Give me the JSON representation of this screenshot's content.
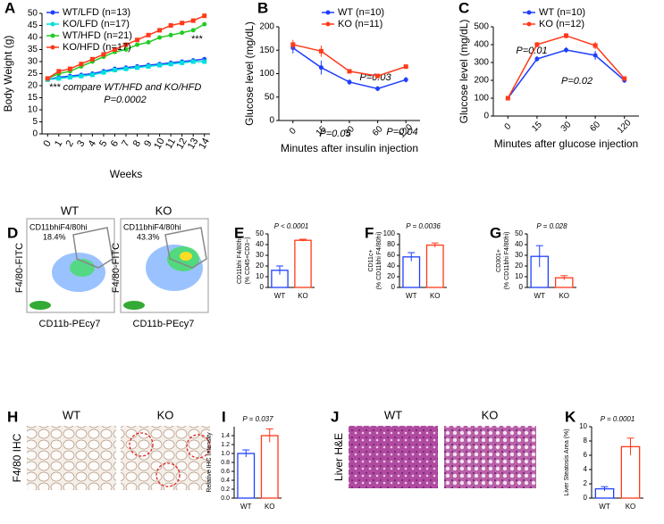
{
  "chart_data": [
    {
      "type": "line",
      "panel": "A",
      "xlabel": "Weeks",
      "ylabel": "Body Weight (g)",
      "x": [
        0,
        1,
        2,
        3,
        4,
        5,
        6,
        7,
        8,
        9,
        10,
        11,
        12,
        13,
        14
      ],
      "xlim": [
        -0.5,
        14.5
      ],
      "xticks": [
        0,
        1,
        2,
        3,
        4,
        5,
        6,
        7,
        8,
        9,
        10,
        11,
        12,
        13,
        14
      ],
      "ylim": [
        0,
        50
      ],
      "yticks": [
        0,
        5,
        10,
        15,
        20,
        25,
        30,
        35,
        40,
        45,
        50
      ],
      "series": [
        {
          "name": "WT/LFD (n=13)",
          "color": "#1f3fff",
          "values": [
            22.5,
            23.5,
            24,
            24.5,
            25,
            26,
            27,
            27.5,
            28,
            28.5,
            29,
            29.5,
            30,
            30.5,
            31
          ]
        },
        {
          "name": "KO/LFD (n=17)",
          "color": "#00dddd",
          "values": [
            22.5,
            23,
            23.5,
            24,
            24.5,
            25.5,
            26.5,
            27,
            27.5,
            28,
            28.5,
            29,
            29.5,
            30,
            30
          ]
        },
        {
          "name": "WT/HFD (n=21)",
          "color": "#22cc22",
          "values": [
            23,
            25,
            26,
            28,
            30,
            32,
            34,
            35,
            37,
            38,
            40,
            41,
            42,
            43,
            45.5
          ]
        },
        {
          "name": "KO/HFD (n=17)",
          "color": "#ff3a1a",
          "values": [
            23,
            26,
            27,
            29,
            31,
            33,
            35,
            37,
            39,
            41,
            43,
            45,
            46,
            47,
            49
          ]
        }
      ],
      "annotations": [
        {
          "text": "***",
          "color": "#ff33cc"
        },
        {
          "text": "*** compare WT/HFD and KO/HFD",
          "color": "#ff33cc"
        },
        {
          "text": "P=0.0002",
          "color": "#ff33cc"
        }
      ]
    },
    {
      "type": "line",
      "panel": "B",
      "xlabel": "Minutes after insulin injection",
      "ylabel": "Glucose level (mg/dL)",
      "categories": [
        "0",
        "15",
        "30",
        "60",
        "120"
      ],
      "ylim": [
        0,
        200
      ],
      "yticks": [
        0,
        50,
        100,
        150,
        200
      ],
      "series": [
        {
          "name": "WT (n=10)",
          "color": "#1f3fff",
          "values": [
            155,
            113,
            82,
            68,
            87
          ],
          "errors": [
            12,
            15,
            6,
            5,
            6
          ]
        },
        {
          "name": "KO (n=11)",
          "color": "#ff3a1a",
          "values": [
            162,
            148,
            105,
            95,
            115
          ],
          "errors": [
            10,
            12,
            4,
            4,
            4
          ]
        }
      ],
      "annotations": [
        {
          "text": "P=0.03",
          "color": "#000000"
        },
        {
          "text": "P=0.05",
          "color": "#000000"
        },
        {
          "text": "P=0.04",
          "color": "#000000"
        }
      ]
    },
    {
      "type": "line",
      "panel": "C",
      "xlabel": "Minutes after glucose injection",
      "ylabel": "Glucose level (mg/dL)",
      "categories": [
        "0",
        "15",
        "30",
        "60",
        "120"
      ],
      "ylim": [
        0,
        500
      ],
      "yticks": [
        0,
        100,
        200,
        300,
        400,
        500
      ],
      "series": [
        {
          "name": "WT (n=10)",
          "color": "#1f3fff",
          "values": [
            100,
            320,
            370,
            340,
            200
          ],
          "errors": [
            8,
            15,
            15,
            25,
            15
          ]
        },
        {
          "name": "KO (n=12)",
          "color": "#ff3a1a",
          "values": [
            100,
            400,
            450,
            395,
            210
          ],
          "errors": [
            8,
            15,
            15,
            20,
            10
          ]
        }
      ],
      "annotations": [
        {
          "text": "P=0.01",
          "color": "#000000"
        },
        {
          "text": "P=0.02",
          "color": "#000000"
        }
      ]
    },
    {
      "type": "bar",
      "panel": "E",
      "ylabel": [
        "CD11bhi F4/80hi",
        "(% CD45+CD3−)"
      ],
      "categories": [
        "WT",
        "KO"
      ],
      "values": [
        16,
        44
      ],
      "errors": [
        4,
        1
      ],
      "colors": [
        "#1f3fff",
        "#ff3a1a"
      ],
      "ylim": [
        0,
        50
      ],
      "yticks": [
        0,
        10,
        20,
        30,
        40,
        50
      ],
      "annotations": [
        {
          "text": "P < 0.0001",
          "color": "#000000"
        }
      ]
    },
    {
      "type": "bar",
      "panel": "F",
      "ylabel": [
        "CD11c+",
        "(% CD11bhi F4/80hi)"
      ],
      "categories": [
        "WT",
        "KO"
      ],
      "values": [
        57,
        79
      ],
      "errors": [
        8,
        4
      ],
      "colors": [
        "#1f3fff",
        "#ff3a1a"
      ],
      "ylim": [
        0,
        100
      ],
      "yticks": [
        0,
        20,
        40,
        60,
        80,
        100
      ],
      "annotations": [
        {
          "text": "P = 0.0036",
          "color": "#000000"
        }
      ]
    },
    {
      "type": "bar",
      "panel": "G",
      "ylabel": [
        "CD301+",
        "(% CD11bhi F4/80hi)"
      ],
      "categories": [
        "WT",
        "KO"
      ],
      "values": [
        29,
        9
      ],
      "errors": [
        10,
        2
      ],
      "colors": [
        "#1f3fff",
        "#ff3a1a"
      ],
      "ylim": [
        0,
        50
      ],
      "yticks": [
        0,
        10,
        20,
        30,
        40,
        50
      ],
      "annotations": [
        {
          "text": "P = 0.028",
          "color": "#000000"
        }
      ]
    },
    {
      "type": "bar",
      "panel": "I",
      "ylabel": [
        "Relative IHC Intensity"
      ],
      "categories": [
        "WT",
        "KO"
      ],
      "values": [
        1.0,
        1.4
      ],
      "errors": [
        0.08,
        0.15
      ],
      "colors": [
        "#1f3fff",
        "#ff3a1a"
      ],
      "ylim": [
        0,
        1.6
      ],
      "yticks": [
        {
          "value": 0,
          "label": "0.0"
        },
        {
          "value": 0.2,
          "label": "0.2"
        },
        {
          "value": 0.4,
          "label": "0.4"
        },
        {
          "value": 0.6,
          "label": "0.6"
        },
        {
          "value": 0.8,
          "label": "0.8"
        },
        {
          "value": 1,
          "label": "1.0"
        },
        {
          "value": 1.2,
          "label": "1.2"
        },
        {
          "value": 1.4,
          "label": "1.4"
        }
      ],
      "annotations": [
        {
          "text": "P = 0.037",
          "color": "#000000"
        }
      ]
    },
    {
      "type": "bar",
      "panel": "K",
      "ylabel": [
        "Liver Steatosis Area (%)"
      ],
      "categories": [
        "WT",
        "KO"
      ],
      "values": [
        1.3,
        7.2
      ],
      "errors": [
        0.3,
        1.2
      ],
      "colors": [
        "#1f3fff",
        "#ff3a1a"
      ],
      "ylim": [
        0,
        10
      ],
      "yticks": [
        0,
        2,
        4,
        6,
        8,
        10
      ],
      "annotations": [
        {
          "text": "P = 0.0001",
          "color": "#000000"
        }
      ]
    }
  ],
  "image_panels": {
    "flow": {
      "panel": "D",
      "columns": [
        "WT",
        "KO"
      ],
      "gates": [
        "CD11bhiF4/80hi",
        "CD11bhiF4/80hi"
      ],
      "percents": [
        "18.4%",
        "43.3%"
      ],
      "ylabel": "F4/80-FITC",
      "xlabel": "CD11b-PEcy7"
    },
    "ihc": {
      "panel": "H",
      "columns": [
        "WT",
        "KO"
      ],
      "label": "F4/80 IHC"
    },
    "liver": {
      "panel": "J",
      "columns": [
        "WT",
        "KO"
      ],
      "label": "Liver H&E"
    }
  }
}
